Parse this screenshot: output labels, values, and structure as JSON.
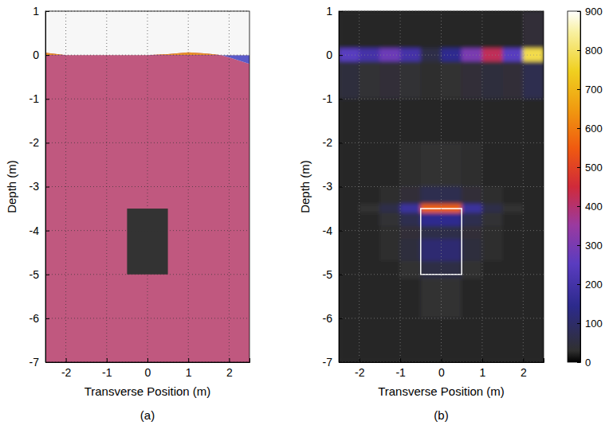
{
  "chart_data": [
    {
      "type": "geometry",
      "label": "(a)",
      "x_label": "Transverse Position (m)",
      "y_label": "Depth (m)",
      "xlim": [
        -2.5,
        2.5
      ],
      "ylim": [
        -7,
        1
      ],
      "xticks": [
        -2,
        -1,
        0,
        1,
        2
      ],
      "yticks": [
        -7,
        -6,
        -5,
        -4,
        -3,
        -2,
        -1,
        0,
        1
      ],
      "grid": true,
      "reference_depth": 0,
      "surface": {
        "x": [
          -2.5,
          -2,
          -1.5,
          -1,
          -0.5,
          0,
          0.5,
          1,
          1.5,
          1.8,
          2,
          2.5
        ],
        "y": [
          0.05,
          0,
          0,
          0,
          0,
          0,
          0.02,
          0.06,
          0.03,
          0,
          -0.05,
          -0.2
        ]
      },
      "target": {
        "x": [
          -0.5,
          0.5
        ],
        "y": [
          -5,
          -3.5
        ]
      }
    },
    {
      "type": "heatmap",
      "label": "(b)",
      "x_label": "Transverse Position (m)",
      "y_label": "Depth (m)",
      "xlim": [
        -2.5,
        2.5
      ],
      "ylim": [
        -7,
        1
      ],
      "xticks": [
        -2,
        -1,
        0,
        1,
        2
      ],
      "yticks": [
        -7,
        -6,
        -5,
        -4,
        -3,
        -2,
        -1,
        0,
        1
      ],
      "grid": true,
      "xbins": [
        -2.5,
        -2,
        -1.5,
        -1,
        -0.5,
        0,
        0.5,
        1,
        1.5,
        2,
        2.5
      ],
      "ybins": [
        1,
        0.15,
        -0.15,
        -1,
        -2,
        -3,
        -3.4,
        -3.6,
        -3.9,
        -4.2,
        -4.7,
        -5.1,
        -6,
        -7
      ],
      "cells": [
        [
          25,
          25,
          25,
          25,
          25,
          25,
          25,
          25,
          25,
          40
        ],
        [
          250,
          200,
          280,
          200,
          60,
          150,
          300,
          420,
          250,
          780
        ],
        [
          45,
          35,
          40,
          35,
          28,
          30,
          40,
          45,
          40,
          70
        ],
        [
          25,
          25,
          25,
          25,
          25,
          25,
          25,
          25,
          25,
          25
        ],
        [
          25,
          25,
          25,
          28,
          32,
          32,
          28,
          25,
          25,
          25
        ],
        [
          25,
          25,
          28,
          40,
          70,
          70,
          40,
          28,
          25,
          25
        ],
        [
          25,
          30,
          60,
          180,
          560,
          560,
          180,
          60,
          30,
          25
        ],
        [
          25,
          25,
          35,
          70,
          150,
          150,
          70,
          35,
          25,
          25
        ],
        [
          25,
          25,
          28,
          40,
          60,
          60,
          40,
          28,
          25,
          25
        ],
        [
          25,
          25,
          28,
          45,
          110,
          110,
          45,
          28,
          25,
          25
        ],
        [
          25,
          25,
          25,
          30,
          55,
          55,
          30,
          25,
          25,
          25
        ],
        [
          25,
          25,
          25,
          25,
          32,
          32,
          25,
          25,
          25,
          25
        ],
        [
          25,
          25,
          25,
          25,
          25,
          25,
          25,
          25,
          25,
          25
        ]
      ],
      "colorbar": {
        "range": [
          0,
          900
        ],
        "ticks": [
          0,
          100,
          200,
          300,
          400,
          500,
          600,
          700,
          800,
          900
        ]
      },
      "target": {
        "x": [
          -0.5,
          0.5
        ],
        "y": [
          -5,
          -3.5
        ]
      }
    }
  ]
}
